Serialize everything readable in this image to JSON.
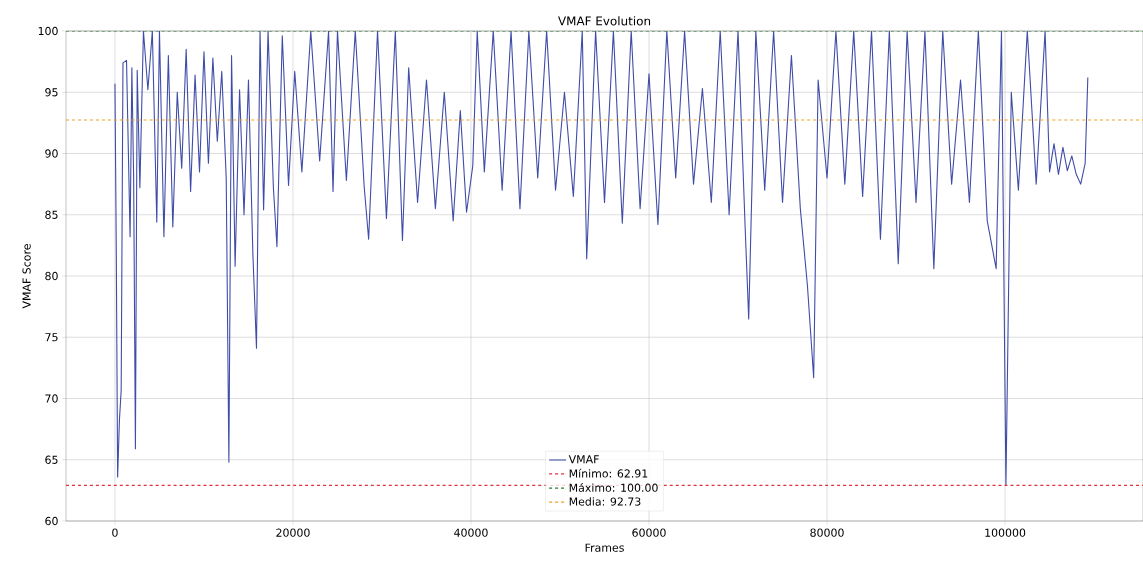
{
  "chart_data": {
    "type": "line",
    "title": "VMAF Evolution",
    "xlabel": "Frames",
    "ylabel": "VMAF Score",
    "xlim": [
      -5500,
      115500
    ],
    "ylim": [
      60,
      100
    ],
    "xticks": [
      0,
      20000,
      40000,
      60000,
      80000,
      100000
    ],
    "yticks": [
      60,
      65,
      70,
      75,
      80,
      85,
      90,
      95,
      100
    ],
    "grid": true,
    "legend": "bottom",
    "line_style": "solid",
    "marker": "none",
    "series": [
      {
        "name": "VMAF",
        "color": "#3f4da8",
        "x": [
          0,
          150,
          300,
          500,
          700,
          900,
          1300,
          1700,
          1900,
          2100,
          2300,
          2500,
          2800,
          3200,
          3700,
          4200,
          4700,
          5000,
          5500,
          6000,
          6500,
          7000,
          7500,
          8000,
          8500,
          9000,
          9500,
          10000,
          10500,
          11000,
          11500,
          12000,
          12500,
          12800,
          13100,
          13500,
          14000,
          14500,
          15000,
          15500,
          15900,
          16300,
          16700,
          17200,
          17800,
          18200,
          18800,
          19500,
          20200,
          21000,
          22000,
          23000,
          24000,
          24500,
          25000,
          26000,
          27000,
          28000,
          28500,
          29500,
          30500,
          31500,
          32300,
          33000,
          34000,
          35000,
          36000,
          37000,
          38000,
          38800,
          39500,
          40200,
          40700,
          41500,
          42500,
          43500,
          44500,
          45500,
          46500,
          47500,
          48500,
          49500,
          50500,
          51500,
          52500,
          53000,
          54000,
          55000,
          56000,
          57000,
          58000,
          59000,
          60000,
          61000,
          62000,
          63000,
          64000,
          65000,
          66000,
          67000,
          68000,
          69000,
          70000,
          70800,
          71200,
          72000,
          73000,
          74000,
          75000,
          76000,
          77000,
          77800,
          78500,
          79000,
          80000,
          81000,
          82000,
          83000,
          84000,
          85000,
          86000,
          87000,
          88000,
          89000,
          90000,
          91000,
          92000,
          93000,
          94000,
          95000,
          96000,
          97000,
          98000,
          99000,
          99600,
          100100,
          100700,
          101500,
          102500,
          103500,
          104500,
          105000,
          105500,
          106000,
          106500,
          107000,
          107500,
          108000,
          108500,
          109000,
          109300
        ],
        "values": [
          95.7,
          82,
          63.6,
          68.2,
          70.7,
          97.4,
          97.6,
          83.2,
          97,
          88,
          65.9,
          96.8,
          87.2,
          100,
          95.2,
          100,
          84.4,
          100,
          83.2,
          98,
          84,
          95,
          88.8,
          98.5,
          86.9,
          96.4,
          88.5,
          98.3,
          89.2,
          97.8,
          91,
          96.7,
          88,
          64.8,
          98,
          80.8,
          95.2,
          85,
          96,
          81.7,
          74.1,
          100,
          85.4,
          100,
          87.2,
          82.4,
          99.6,
          87.4,
          96.7,
          88.5,
          100,
          89.4,
          100,
          86.9,
          100,
          87.8,
          100,
          87.3,
          83,
          100,
          84.7,
          100,
          82.9,
          97,
          86,
          96,
          85.5,
          95,
          84.5,
          93.5,
          85.2,
          89,
          100,
          88.5,
          100,
          87,
          100,
          85.5,
          100,
          88,
          100,
          87,
          95,
          86.5,
          100,
          81.4,
          100,
          86,
          100,
          84.3,
          100,
          85.5,
          96.5,
          84.2,
          100,
          88,
          100,
          87.5,
          95.3,
          86,
          100,
          85,
          100,
          84,
          76.5,
          100,
          87,
          100,
          86,
          98,
          85.5,
          79.2,
          71.7,
          96,
          88,
          100,
          87.5,
          100,
          86.5,
          100,
          83,
          100,
          81,
          100,
          86,
          100,
          80.6,
          100,
          87.5,
          96,
          86,
          100,
          84.5,
          80.6,
          100,
          62.9,
          95,
          87,
          100,
          87.5,
          100,
          88.5,
          90.8,
          88.3,
          90.5,
          88.6,
          89.8,
          88.3,
          87.5,
          89.2,
          96.2
        ]
      }
    ],
    "ref_lines": [
      {
        "axis": "y",
        "value": 62.91,
        "label": "Mínimo: 62.91",
        "color": "#e0303c",
        "line_style": "dashed"
      },
      {
        "axis": "y",
        "value": 100,
        "label": "Máximo: 100.00",
        "color": "#2a7a2a",
        "line_style": "dashed"
      },
      {
        "axis": "y",
        "value": 92.73,
        "label": "Media: 92.73",
        "color": "#f0a020",
        "line_style": "dashed"
      }
    ]
  }
}
